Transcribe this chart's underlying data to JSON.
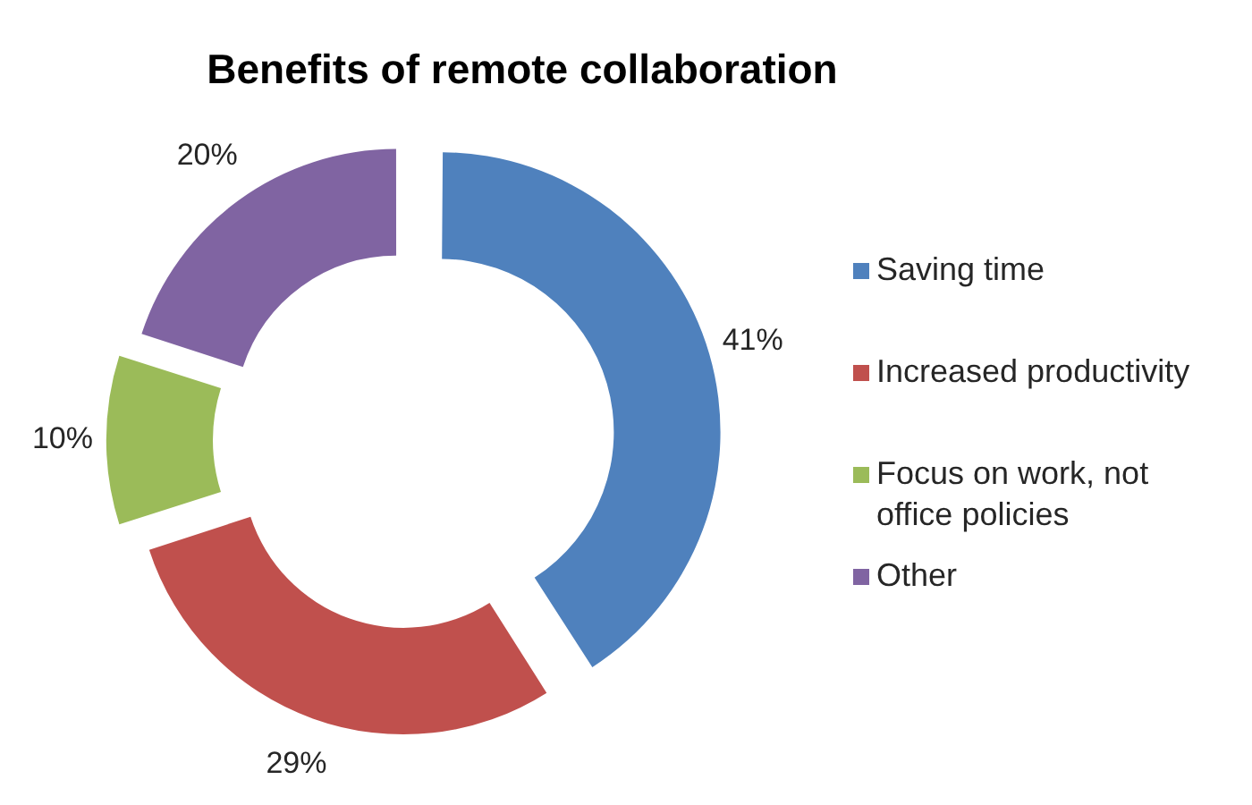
{
  "chart_data": {
    "type": "donut",
    "title": "Benefits of remote collaboration",
    "categories": [
      "Saving time",
      "Increased productivity",
      "Focus on work, not office policies",
      "Other"
    ],
    "values": [
      41,
      29,
      10,
      20
    ],
    "colors": [
      "#4f81bd",
      "#c0504d",
      "#9bbb59",
      "#8064a2"
    ],
    "value_labels": [
      "41%",
      "29%",
      "10%",
      "20%"
    ],
    "legend": "right"
  }
}
